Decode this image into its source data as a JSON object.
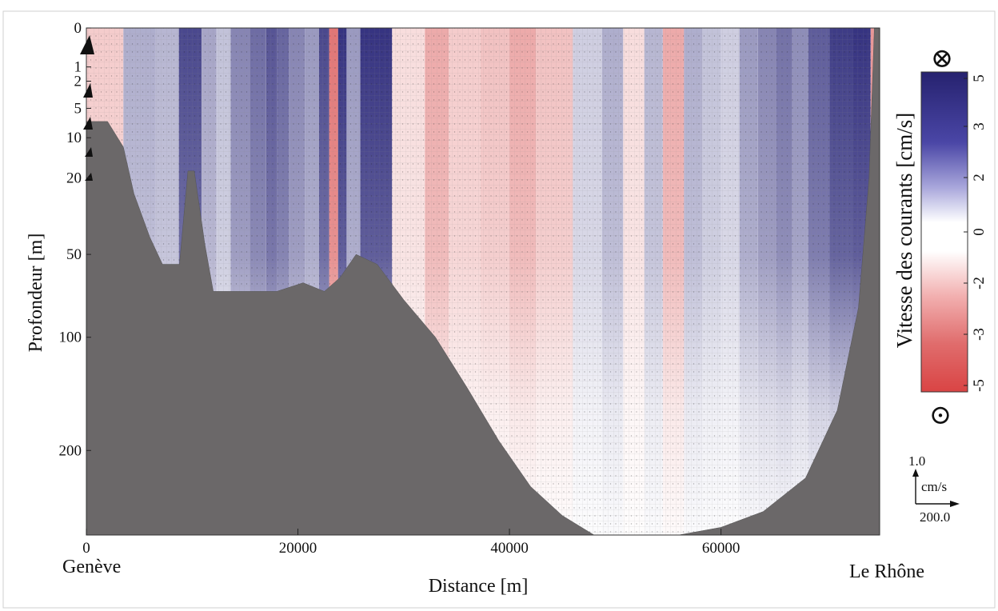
{
  "chart_data": {
    "type": "heatmap",
    "title": "",
    "xlabel": "Distance [m]",
    "ylabel": "Profondeur [m]",
    "xlim": [
      0,
      75000
    ],
    "ylim": [
      0,
      300
    ],
    "x_ticks": [
      {
        "value": 0,
        "label": "0"
      },
      {
        "value": 20000,
        "label": "20000"
      },
      {
        "value": 40000,
        "label": "40000"
      },
      {
        "value": 60000,
        "label": "60000"
      }
    ],
    "y_ticks": [
      {
        "value": 0,
        "label": "0"
      },
      {
        "value": 1,
        "label": "1"
      },
      {
        "value": 2,
        "label": "2"
      },
      {
        "value": 5,
        "label": "5"
      },
      {
        "value": 10,
        "label": "10"
      },
      {
        "value": 20,
        "label": "20"
      },
      {
        "value": 50,
        "label": "50"
      },
      {
        "value": 100,
        "label": "100"
      },
      {
        "value": 200,
        "label": "200"
      }
    ],
    "endpoints": {
      "left": "Genève",
      "right": "Le Rhône"
    },
    "colorbar": {
      "label": "Vitesse des courants [cm/s]",
      "ticks": [
        "5",
        "3",
        "2",
        "0",
        "-2",
        "-3",
        "-5"
      ],
      "positive_color": "#2b2a7a",
      "negative_color": "#d94a4a",
      "neutral_color": "#ffffff",
      "top_symbol": "⊗",
      "bottom_symbol": "⊙"
    },
    "vector_scale": {
      "vertical": "1.0",
      "unit": "cm/s",
      "horizontal": "200.0"
    },
    "bathymetry": [
      {
        "x": 0,
        "depth": 7
      },
      {
        "x": 2000,
        "depth": 7
      },
      {
        "x": 3500,
        "depth": 12
      },
      {
        "x": 4500,
        "depth": 25
      },
      {
        "x": 6000,
        "depth": 42
      },
      {
        "x": 7200,
        "depth": 55
      },
      {
        "x": 8800,
        "depth": 55
      },
      {
        "x": 9600,
        "depth": 18
      },
      {
        "x": 10200,
        "depth": 18
      },
      {
        "x": 11200,
        "depth": 45
      },
      {
        "x": 12000,
        "depth": 70
      },
      {
        "x": 18000,
        "depth": 70
      },
      {
        "x": 20500,
        "depth": 65
      },
      {
        "x": 22500,
        "depth": 70
      },
      {
        "x": 24000,
        "depth": 62
      },
      {
        "x": 25500,
        "depth": 50
      },
      {
        "x": 27500,
        "depth": 55
      },
      {
        "x": 30000,
        "depth": 75
      },
      {
        "x": 33000,
        "depth": 100
      },
      {
        "x": 36000,
        "depth": 140
      },
      {
        "x": 39000,
        "depth": 190
      },
      {
        "x": 42000,
        "depth": 240
      },
      {
        "x": 45000,
        "depth": 275
      },
      {
        "x": 48000,
        "depth": 300
      },
      {
        "x": 52000,
        "depth": 300
      },
      {
        "x": 56000,
        "depth": 300
      },
      {
        "x": 60000,
        "depth": 290
      },
      {
        "x": 64000,
        "depth": 270
      },
      {
        "x": 68000,
        "depth": 230
      },
      {
        "x": 71000,
        "depth": 160
      },
      {
        "x": 73000,
        "depth": 80
      },
      {
        "x": 74000,
        "depth": 20
      },
      {
        "x": 74500,
        "depth": 0
      },
      {
        "x": 75000,
        "depth": 0
      }
    ],
    "velocity_columns": [
      {
        "x": 1500,
        "v": -1.5
      },
      {
        "x": 5500,
        "v": 2.0
      },
      {
        "x": 7500,
        "v": 1.8
      },
      {
        "x": 10000,
        "v": 4.5
      },
      {
        "x": 11800,
        "v": 2.2
      },
      {
        "x": 12800,
        "v": 1.5
      },
      {
        "x": 14500,
        "v": 3.0
      },
      {
        "x": 16500,
        "v": 3.6
      },
      {
        "x": 17500,
        "v": 4.2
      },
      {
        "x": 18500,
        "v": 3.8
      },
      {
        "x": 19800,
        "v": 3.0
      },
      {
        "x": 21500,
        "v": 2.5
      },
      {
        "x": 22500,
        "v": 4.5
      },
      {
        "x": 23400,
        "v": -4.0
      },
      {
        "x": 24200,
        "v": 5.0
      },
      {
        "x": 25000,
        "v": 2.5
      },
      {
        "x": 26800,
        "v": 5.0
      },
      {
        "x": 31000,
        "v": -1.0
      },
      {
        "x": 33000,
        "v": -2.5
      },
      {
        "x": 35500,
        "v": -1.5
      },
      {
        "x": 39000,
        "v": -1.8
      },
      {
        "x": 41000,
        "v": -2.5
      },
      {
        "x": 44000,
        "v": -1.8
      },
      {
        "x": 48000,
        "v": 1.2
      },
      {
        "x": 49500,
        "v": 2.0
      },
      {
        "x": 52000,
        "v": -1.0
      },
      {
        "x": 53500,
        "v": 1.8
      },
      {
        "x": 55500,
        "v": -2.5
      },
      {
        "x": 57500,
        "v": 2.0
      },
      {
        "x": 59000,
        "v": 1.5
      },
      {
        "x": 61000,
        "v": 1.2
      },
      {
        "x": 62500,
        "v": 2.5
      },
      {
        "x": 64500,
        "v": 3.0
      },
      {
        "x": 66000,
        "v": 3.5
      },
      {
        "x": 67500,
        "v": 2.8
      },
      {
        "x": 69000,
        "v": 4.0
      },
      {
        "x": 71500,
        "v": 4.8
      },
      {
        "x": 73500,
        "v": 5.0
      },
      {
        "x": 74800,
        "v": -3.0
      }
    ]
  }
}
